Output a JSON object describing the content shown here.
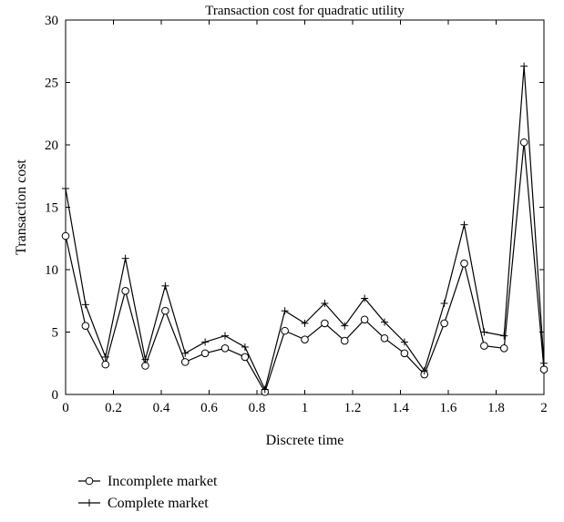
{
  "chart_data": {
    "type": "line",
    "title": "Transaction cost for quadratic utility",
    "xlabel": "Discrete time",
    "ylabel": "Transaction cost",
    "xlim": [
      0,
      2
    ],
    "ylim": [
      0,
      30
    ],
    "xticks": [
      "0",
      "0.2",
      "0.4",
      "0.6",
      "0.8",
      "1",
      "1.2",
      "1.4",
      "1.6",
      "1.8",
      "2"
    ],
    "yticks": [
      "0",
      "5",
      "10",
      "15",
      "20",
      "25",
      "30"
    ],
    "grid": false,
    "legend_position": "below-left",
    "x": [
      0,
      0.0833,
      0.1667,
      0.25,
      0.3333,
      0.4167,
      0.5,
      0.5833,
      0.6667,
      0.75,
      0.8333,
      0.9167,
      1.0,
      1.0833,
      1.1667,
      1.25,
      1.3333,
      1.4167,
      1.5,
      1.5833,
      1.6667,
      1.75,
      1.8333,
      1.9167,
      2.0
    ],
    "series": [
      {
        "name": "Incomplete market",
        "marker": "circle",
        "values": [
          12.7,
          5.5,
          2.4,
          8.3,
          2.3,
          6.7,
          2.6,
          3.3,
          3.7,
          3.0,
          0.2,
          5.1,
          4.4,
          5.7,
          4.3,
          6.0,
          4.5,
          3.3,
          1.6,
          5.7,
          10.5,
          3.9,
          3.7,
          20.2,
          2.0
        ]
      },
      {
        "name": "Complete market",
        "marker": "plus",
        "values": [
          16.5,
          7.2,
          3.0,
          10.9,
          2.8,
          8.7,
          3.3,
          4.2,
          4.7,
          3.8,
          0.4,
          6.7,
          5.7,
          7.3,
          5.5,
          7.7,
          5.8,
          4.2,
          1.9,
          7.3,
          13.6,
          5.0,
          4.7,
          26.3,
          2.5
        ]
      }
    ],
    "colors": {
      "line": "#000000",
      "background": "#ffffff"
    }
  }
}
